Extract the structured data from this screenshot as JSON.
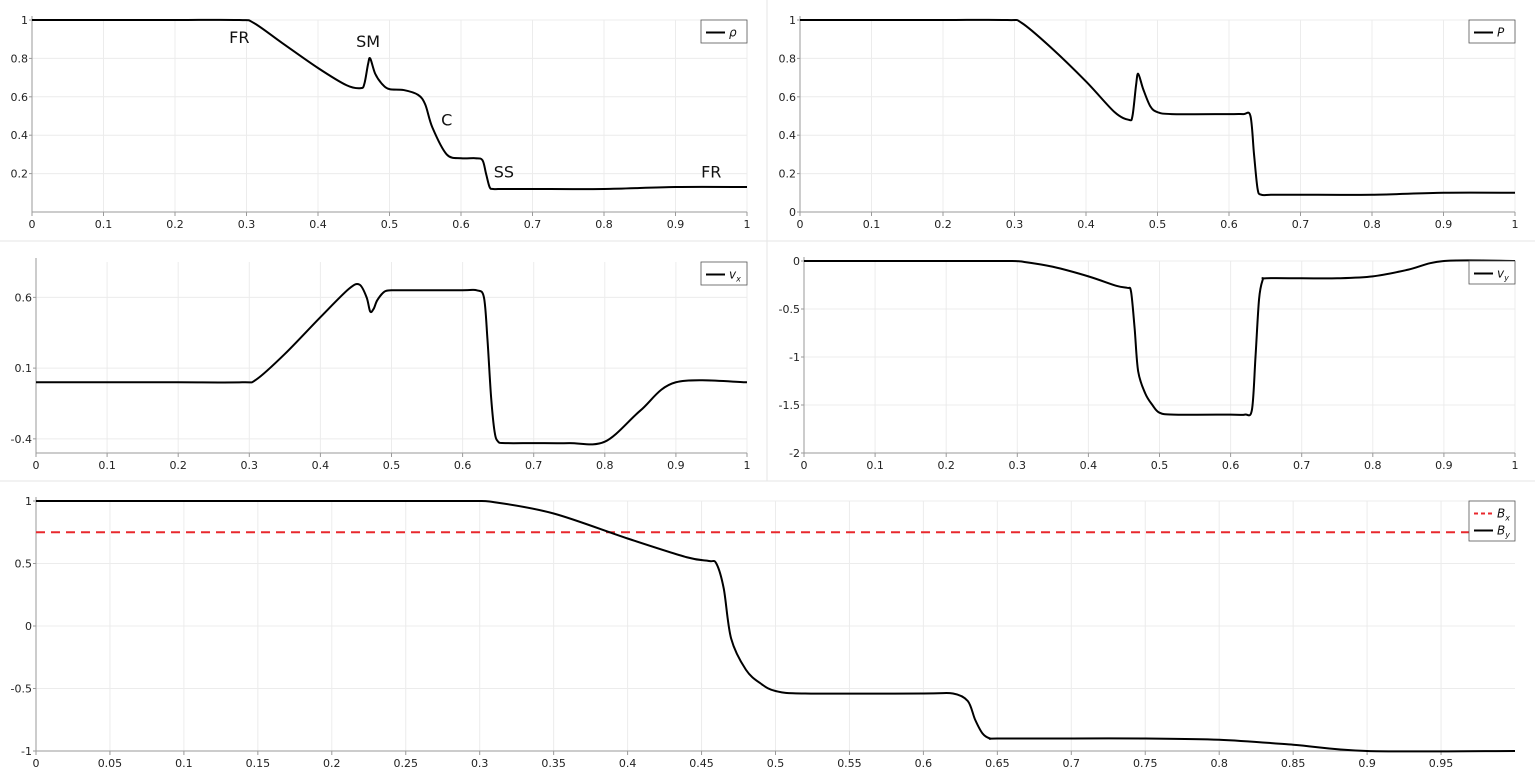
{
  "colors": {
    "curve": "#000000",
    "bx": "#e8282d",
    "grid": "#ececec",
    "axis": "#9a9a9a",
    "divider": "#e6e6e6"
  },
  "chart_data": [
    {
      "type": "line",
      "x": [
        0,
        0.1,
        0.2,
        0.29,
        0.31,
        0.35,
        0.4,
        0.44,
        0.46,
        0.465,
        0.47,
        0.473,
        0.48,
        0.49,
        0.5,
        0.52,
        0.54,
        0.55,
        0.56,
        0.58,
        0.6,
        0.62,
        0.63,
        0.635,
        0.64,
        0.645,
        0.66,
        0.7,
        0.8,
        0.9,
        1.0
      ],
      "series": [
        {
          "name": "ρ",
          "values": [
            1,
            1,
            1,
            1,
            0.985,
            0.88,
            0.75,
            0.66,
            0.645,
            0.67,
            0.77,
            0.8,
            0.72,
            0.665,
            0.64,
            0.635,
            0.61,
            0.56,
            0.44,
            0.3,
            0.28,
            0.28,
            0.27,
            0.2,
            0.13,
            0.12,
            0.12,
            0.12,
            0.12,
            0.13,
            0.13
          ]
        }
      ],
      "xlim": [
        0,
        1
      ],
      "ylim": [
        0,
        1
      ],
      "xticks": [
        "0",
        "0.1",
        "0.2",
        "0.3",
        "0.4",
        "0.5",
        "0.6",
        "0.7",
        "0.8",
        "0.9",
        "1"
      ],
      "yticks": [
        "0.2",
        "0.4",
        "0.6",
        "0.8",
        "1"
      ],
      "annotations": [
        "FR",
        "SM",
        "C",
        "SS",
        "FR"
      ],
      "annotation_positions": [
        [
          0.29,
          0.88
        ],
        [
          0.47,
          0.86
        ],
        [
          0.58,
          0.45
        ],
        [
          0.66,
          0.18
        ],
        [
          0.95,
          0.18
        ]
      ],
      "legend": "top-right"
    },
    {
      "type": "line",
      "x": [
        0,
        0.1,
        0.2,
        0.29,
        0.31,
        0.35,
        0.4,
        0.44,
        0.46,
        0.465,
        0.47,
        0.473,
        0.48,
        0.49,
        0.5,
        0.52,
        0.6,
        0.62,
        0.63,
        0.635,
        0.64,
        0.645,
        0.66,
        0.7,
        0.8,
        0.9,
        1.0
      ],
      "series": [
        {
          "name": "P",
          "values": [
            1,
            1,
            1,
            1,
            0.985,
            0.86,
            0.68,
            0.52,
            0.48,
            0.5,
            0.66,
            0.72,
            0.64,
            0.55,
            0.52,
            0.51,
            0.51,
            0.51,
            0.5,
            0.3,
            0.12,
            0.09,
            0.09,
            0.09,
            0.09,
            0.1,
            0.1
          ]
        }
      ],
      "xlim": [
        0,
        1
      ],
      "ylim": [
        0,
        1
      ],
      "xticks": [
        "0",
        "0.1",
        "0.2",
        "0.3",
        "0.4",
        "0.5",
        "0.6",
        "0.7",
        "0.8",
        "0.9",
        "1"
      ],
      "yticks": [
        "0",
        "0.2",
        "0.4",
        "0.6",
        "0.8",
        "1"
      ],
      "legend": "top-right"
    },
    {
      "type": "line",
      "x": [
        0,
        0.1,
        0.2,
        0.29,
        0.31,
        0.35,
        0.4,
        0.44,
        0.455,
        0.465,
        0.47,
        0.475,
        0.48,
        0.49,
        0.5,
        0.52,
        0.6,
        0.62,
        0.63,
        0.635,
        0.64,
        0.645,
        0.65,
        0.66,
        0.7,
        0.75,
        0.8,
        0.85,
        0.9,
        1.0
      ],
      "series": [
        {
          "name": "v_x",
          "values": [
            0,
            0,
            0,
            0,
            0.02,
            0.2,
            0.46,
            0.66,
            0.69,
            0.6,
            0.5,
            0.52,
            0.58,
            0.64,
            0.65,
            0.65,
            0.65,
            0.65,
            0.6,
            0.3,
            -0.1,
            -0.35,
            -0.42,
            -0.43,
            -0.43,
            -0.43,
            -0.42,
            -0.2,
            0,
            0
          ]
        }
      ],
      "xlim": [
        0,
        1
      ],
      "ylim": [
        -0.5,
        0.85
      ],
      "xticks": [
        "0",
        "0.1",
        "0.2",
        "0.3",
        "0.4",
        "0.5",
        "0.6",
        "0.7",
        "0.8",
        "0.9",
        "1"
      ],
      "yticks": [
        "-0.4",
        "0.1",
        "0.6"
      ],
      "legend": "top-right"
    },
    {
      "type": "line",
      "x": [
        0,
        0.1,
        0.2,
        0.29,
        0.31,
        0.35,
        0.4,
        0.44,
        0.455,
        0.46,
        0.465,
        0.47,
        0.48,
        0.49,
        0.5,
        0.52,
        0.6,
        0.62,
        0.63,
        0.635,
        0.64,
        0.645,
        0.65,
        0.7,
        0.75,
        0.8,
        0.85,
        0.9,
        1.0
      ],
      "series": [
        {
          "name": "v_y",
          "values": [
            0,
            0,
            0,
            0,
            -0.01,
            -0.06,
            -0.16,
            -0.26,
            -0.28,
            -0.32,
            -0.7,
            -1.15,
            -1.38,
            -1.5,
            -1.58,
            -1.6,
            -1.6,
            -1.6,
            -1.55,
            -1.0,
            -0.4,
            -0.2,
            -0.18,
            -0.18,
            -0.18,
            -0.16,
            -0.09,
            0,
            0
          ]
        }
      ],
      "xlim": [
        0,
        1
      ],
      "ylim": [
        -2,
        0
      ],
      "xticks": [
        "0",
        "0.1",
        "0.2",
        "0.3",
        "0.4",
        "0.5",
        "0.6",
        "0.7",
        "0.8",
        "0.9",
        "1"
      ],
      "yticks": [
        "-2",
        "-1.5",
        "-1",
        "-0.5",
        "0"
      ],
      "legend": "top-right"
    },
    {
      "type": "line",
      "x": [
        0,
        0.1,
        0.2,
        0.29,
        0.31,
        0.35,
        0.4,
        0.44,
        0.455,
        0.46,
        0.465,
        0.47,
        0.48,
        0.49,
        0.5,
        0.52,
        0.6,
        0.62,
        0.63,
        0.635,
        0.64,
        0.645,
        0.65,
        0.7,
        0.75,
        0.8,
        0.85,
        0.9,
        1.0
      ],
      "series": [
        {
          "name": "B_x",
          "values": [
            0.75,
            0.75,
            0.75,
            0.75,
            0.75,
            0.75,
            0.75,
            0.75,
            0.75,
            0.75,
            0.75,
            0.75,
            0.75,
            0.75,
            0.75,
            0.75,
            0.75,
            0.75,
            0.75,
            0.75,
            0.75,
            0.75,
            0.75,
            0.75,
            0.75,
            0.75,
            0.75,
            0.75,
            0.75
          ],
          "style": "dashed",
          "color": "#e8282d"
        },
        {
          "name": "B_y",
          "values": [
            1,
            1,
            1,
            1,
            0.99,
            0.9,
            0.7,
            0.55,
            0.52,
            0.5,
            0.3,
            -0.1,
            -0.35,
            -0.46,
            -0.52,
            -0.54,
            -0.54,
            -0.54,
            -0.6,
            -0.75,
            -0.86,
            -0.9,
            -0.9,
            -0.9,
            -0.9,
            -0.91,
            -0.95,
            -1.0,
            -1.0
          ],
          "style": "solid",
          "color": "#000000"
        }
      ],
      "xlim": [
        0,
        1
      ],
      "ylim": [
        -1,
        1
      ],
      "xticks": [
        "0",
        "0.05",
        "0.1",
        "0.15",
        "0.2",
        "0.25",
        "0.3",
        "0.35",
        "0.4",
        "0.45",
        "0.5",
        "0.55",
        "0.6",
        "0.65",
        "0.7",
        "0.75",
        "0.8",
        "0.85",
        "0.9",
        "0.95"
      ],
      "yticks": [
        "-1",
        "-0.5",
        "0",
        "0.5",
        "1"
      ],
      "legend": "top-right"
    }
  ]
}
